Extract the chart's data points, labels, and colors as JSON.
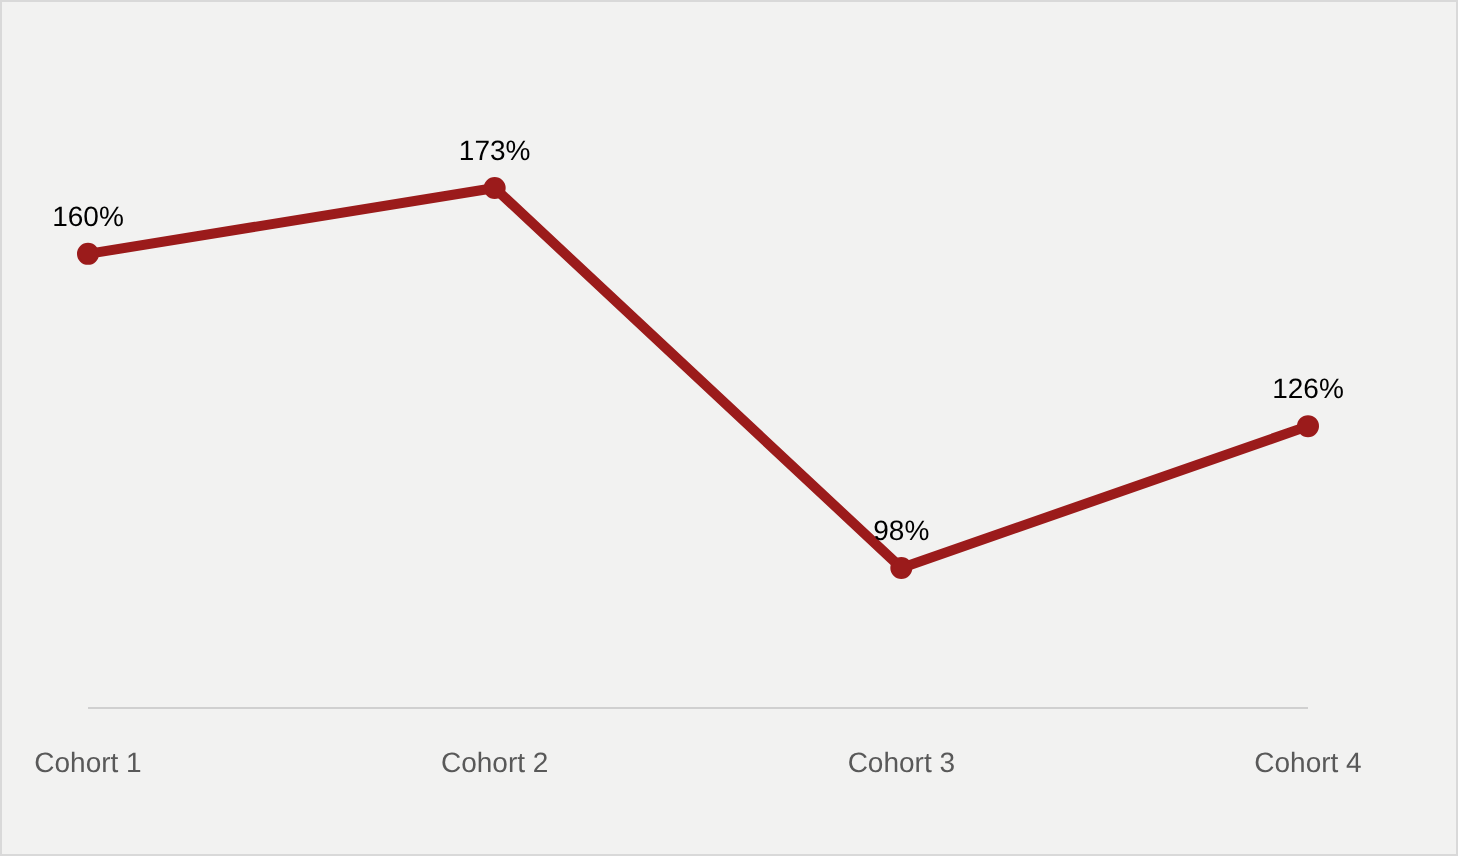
{
  "chart_data": {
    "type": "line",
    "categories": [
      "Cohort 1",
      "Cohort 2",
      "Cohort 3",
      "Cohort 4"
    ],
    "series": [
      {
        "color": "#9b1b1b",
        "values": [
          160,
          173,
          98,
          126
        ],
        "value_labels": [
          "160%",
          "173%",
          "98%",
          "126%"
        ]
      }
    ],
    "tick_labels": "x",
    "marker": "circle",
    "line_style": "solid"
  }
}
